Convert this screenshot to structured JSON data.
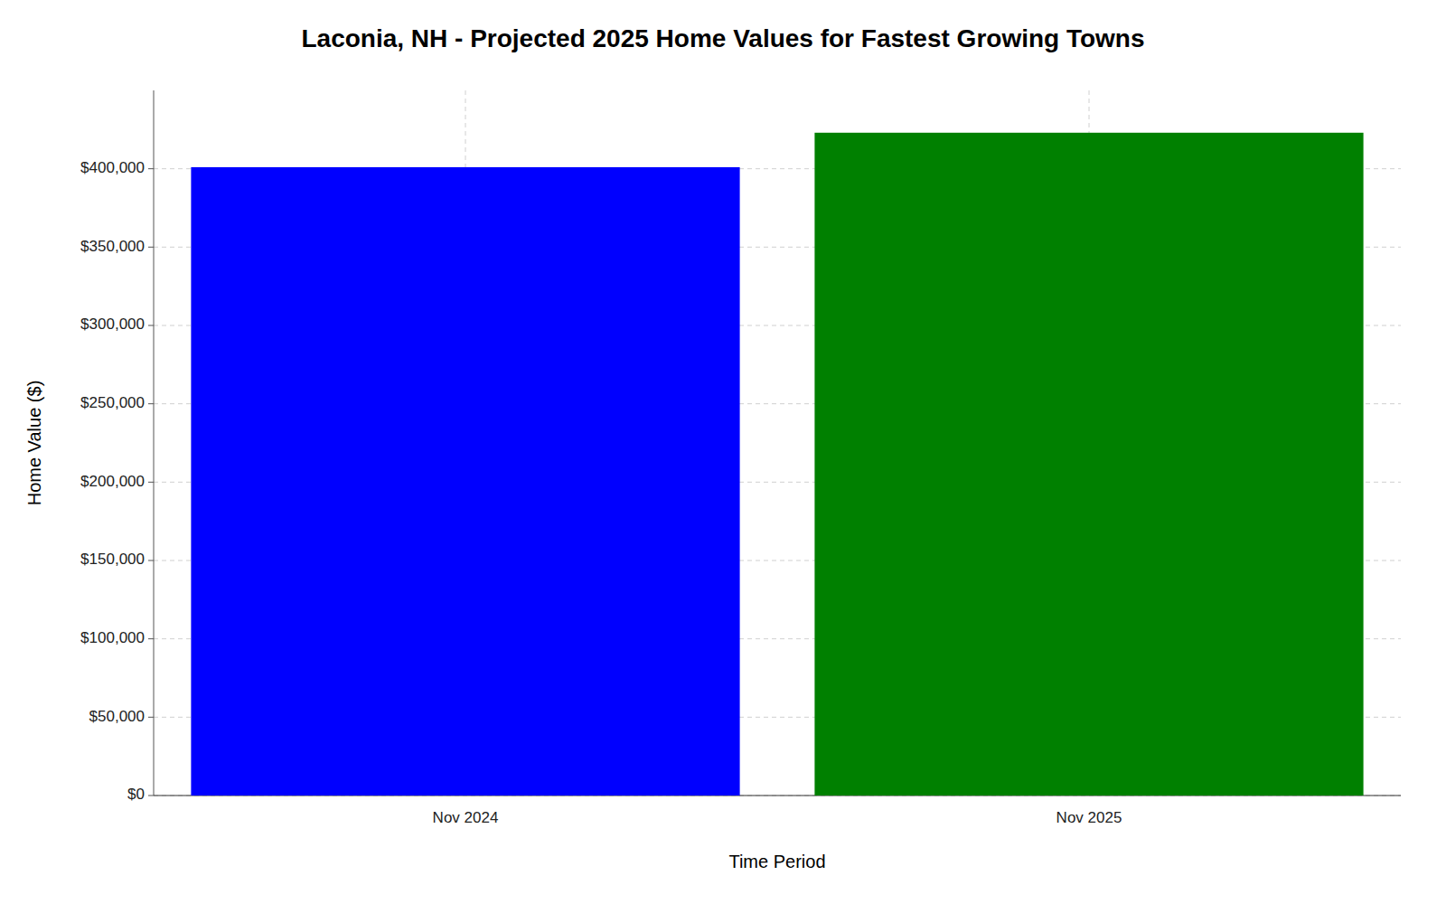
{
  "chart_data": {
    "type": "bar",
    "title": "Laconia, NH - Projected 2025 Home Values for Fastest Growing Towns",
    "xlabel": "Time Period",
    "ylabel": "Home Value ($)",
    "categories": [
      "Nov 2024",
      "Nov 2025"
    ],
    "values": [
      401000,
      423000
    ],
    "colors": [
      "#0000ff",
      "#008000"
    ],
    "ylim": [
      0,
      450000
    ],
    "yticks": [
      {
        "value": 0,
        "label": "$0"
      },
      {
        "value": 50000,
        "label": "$50,000"
      },
      {
        "value": 100000,
        "label": "$100,000"
      },
      {
        "value": 150000,
        "label": "$150,000"
      },
      {
        "value": 200000,
        "label": "$200,000"
      },
      {
        "value": 250000,
        "label": "$250,000"
      },
      {
        "value": 300000,
        "label": "$300,000"
      },
      {
        "value": 350000,
        "label": "$350,000"
      },
      {
        "value": 400000,
        "label": "$400,000"
      }
    ],
    "grid": true
  }
}
